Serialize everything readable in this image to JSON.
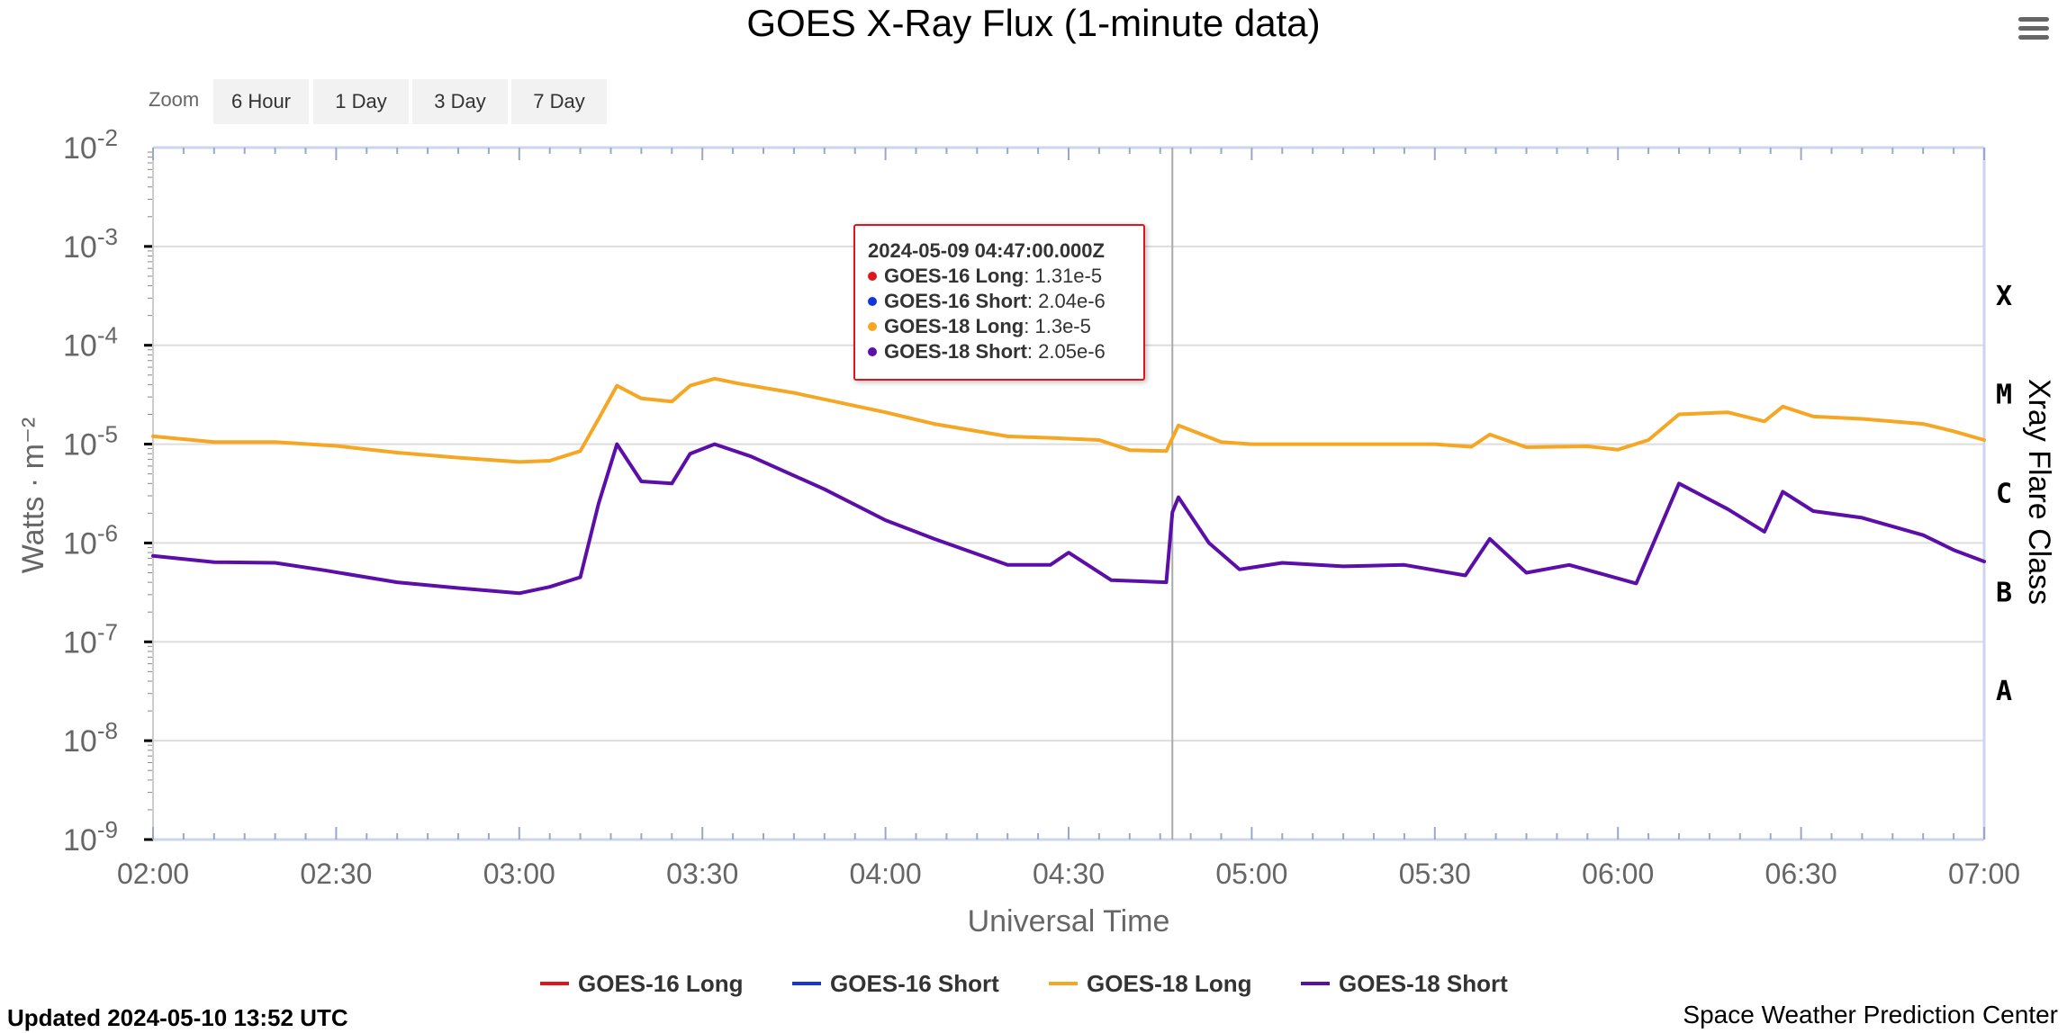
{
  "chart_data": {
    "type": "line",
    "title": "GOES X-Ray Flux (1-minute data)",
    "xlabel": "Universal Time",
    "ylabel": "Watts · m⁻²",
    "ylabel_right": "Xray Flare Class",
    "y_scale": "log",
    "ylim": [
      1e-09,
      0.01
    ],
    "xlim": [
      "2024-05-09T02:00Z",
      "2024-05-09T07:00Z"
    ],
    "x_tick_labels": [
      "02:00",
      "02:30",
      "03:00",
      "03:30",
      "04:00",
      "04:30",
      "05:00",
      "05:30",
      "06:00",
      "06:30",
      "07:00"
    ],
    "y_tick_exponents": [
      "-2",
      "-3",
      "-4",
      "-5",
      "-6",
      "-7",
      "-8",
      "-9"
    ],
    "flare_classes": [
      {
        "label": "X",
        "lower": 0.0001,
        "upper": 0.001
      },
      {
        "label": "M",
        "lower": 1e-05,
        "upper": 0.0001
      },
      {
        "label": "C",
        "lower": 1e-06,
        "upper": 1e-05
      },
      {
        "label": "B",
        "lower": 1e-07,
        "upper": 1e-06
      },
      {
        "label": "A",
        "lower": 1e-08,
        "upper": 1e-07
      }
    ],
    "grid": true,
    "legend_position": "bottom-center",
    "crosshair_time": "2024-05-09T04:47Z",
    "series": [
      {
        "name": "GOES-16 Long",
        "color": "#e0161a",
        "visible": false,
        "points": []
      },
      {
        "name": "GOES-16 Short",
        "color": "#1435d8",
        "visible": false,
        "points": []
      },
      {
        "name": "GOES-18 Long",
        "color": "#f5a623",
        "visible": true,
        "points": [
          [
            "2024-05-09T02:00Z",
            1.2e-05
          ],
          [
            "2024-05-09T02:10Z",
            1.05e-05
          ],
          [
            "2024-05-09T02:20Z",
            1.05e-05
          ],
          [
            "2024-05-09T02:30Z",
            9.6e-06
          ],
          [
            "2024-05-09T02:40Z",
            8.2e-06
          ],
          [
            "2024-05-09T02:50Z",
            7.3e-06
          ],
          [
            "2024-05-09T03:00Z",
            6.6e-06
          ],
          [
            "2024-05-09T03:05Z",
            6.8e-06
          ],
          [
            "2024-05-09T03:10Z",
            8.5e-06
          ],
          [
            "2024-05-09T03:13Z",
            1.8e-05
          ],
          [
            "2024-05-09T03:16Z",
            3.9e-05
          ],
          [
            "2024-05-09T03:20Z",
            2.9e-05
          ],
          [
            "2024-05-09T03:25Z",
            2.7e-05
          ],
          [
            "2024-05-09T03:28Z",
            3.9e-05
          ],
          [
            "2024-05-09T03:32Z",
            4.6e-05
          ],
          [
            "2024-05-09T03:36Z",
            4.1e-05
          ],
          [
            "2024-05-09T03:45Z",
            3.3e-05
          ],
          [
            "2024-05-09T04:00Z",
            2.1e-05
          ],
          [
            "2024-05-09T04:08Z",
            1.6e-05
          ],
          [
            "2024-05-09T04:20Z",
            1.2e-05
          ],
          [
            "2024-05-09T04:28Z",
            1.15e-05
          ],
          [
            "2024-05-09T04:35Z",
            1.1e-05
          ],
          [
            "2024-05-09T04:40Z",
            8.7e-06
          ],
          [
            "2024-05-09T04:46Z",
            8.5e-06
          ],
          [
            "2024-05-09T04:48Z",
            1.55e-05
          ],
          [
            "2024-05-09T04:55Z",
            1.05e-05
          ],
          [
            "2024-05-09T05:00Z",
            1e-05
          ],
          [
            "2024-05-09T05:20Z",
            1e-05
          ],
          [
            "2024-05-09T05:30Z",
            1e-05
          ],
          [
            "2024-05-09T05:36Z",
            9.4e-06
          ],
          [
            "2024-05-09T05:39Z",
            1.25e-05
          ],
          [
            "2024-05-09T05:45Z",
            9.3e-06
          ],
          [
            "2024-05-09T05:50Z",
            9.4e-06
          ],
          [
            "2024-05-09T05:55Z",
            9.5e-06
          ],
          [
            "2024-05-09T06:00Z",
            8.8e-06
          ],
          [
            "2024-05-09T06:05Z",
            1.1e-05
          ],
          [
            "2024-05-09T06:10Z",
            2e-05
          ],
          [
            "2024-05-09T06:18Z",
            2.1e-05
          ],
          [
            "2024-05-09T06:24Z",
            1.7e-05
          ],
          [
            "2024-05-09T06:27Z",
            2.4e-05
          ],
          [
            "2024-05-09T06:32Z",
            1.9e-05
          ],
          [
            "2024-05-09T06:40Z",
            1.8e-05
          ],
          [
            "2024-05-09T06:50Z",
            1.6e-05
          ],
          [
            "2024-05-09T06:55Z",
            1.35e-05
          ],
          [
            "2024-05-09T07:00Z",
            1.1e-05
          ]
        ]
      },
      {
        "name": "GOES-18 Short",
        "color": "#5b0ea8",
        "visible": true,
        "points": [
          [
            "2024-05-09T02:00Z",
            7.4e-07
          ],
          [
            "2024-05-09T02:10Z",
            6.4e-07
          ],
          [
            "2024-05-09T02:20Z",
            6.3e-07
          ],
          [
            "2024-05-09T02:28Z",
            5.3e-07
          ],
          [
            "2024-05-09T02:40Z",
            4e-07
          ],
          [
            "2024-05-09T02:50Z",
            3.5e-07
          ],
          [
            "2024-05-09T03:00Z",
            3.1e-07
          ],
          [
            "2024-05-09T03:05Z",
            3.6e-07
          ],
          [
            "2024-05-09T03:10Z",
            4.5e-07
          ],
          [
            "2024-05-09T03:13Z",
            2.5e-06
          ],
          [
            "2024-05-09T03:16Z",
            1e-05
          ],
          [
            "2024-05-09T03:20Z",
            4.2e-06
          ],
          [
            "2024-05-09T03:25Z",
            4e-06
          ],
          [
            "2024-05-09T03:28Z",
            8e-06
          ],
          [
            "2024-05-09T03:32Z",
            1e-05
          ],
          [
            "2024-05-09T03:38Z",
            7.5e-06
          ],
          [
            "2024-05-09T03:50Z",
            3.5e-06
          ],
          [
            "2024-05-09T04:00Z",
            1.7e-06
          ],
          [
            "2024-05-09T04:08Z",
            1.1e-06
          ],
          [
            "2024-05-09T04:20Z",
            6e-07
          ],
          [
            "2024-05-09T04:27Z",
            6e-07
          ],
          [
            "2024-05-09T04:30Z",
            8e-07
          ],
          [
            "2024-05-09T04:37Z",
            4.2e-07
          ],
          [
            "2024-05-09T04:46Z",
            4e-07
          ],
          [
            "2024-05-09T04:47Z",
            2.05e-06
          ],
          [
            "2024-05-09T04:48Z",
            2.9e-06
          ],
          [
            "2024-05-09T04:53Z",
            1e-06
          ],
          [
            "2024-05-09T04:58Z",
            5.4e-07
          ],
          [
            "2024-05-09T05:05Z",
            6.3e-07
          ],
          [
            "2024-05-09T05:15Z",
            5.8e-07
          ],
          [
            "2024-05-09T05:25Z",
            6e-07
          ],
          [
            "2024-05-09T05:35Z",
            4.7e-07
          ],
          [
            "2024-05-09T05:39Z",
            1.1e-06
          ],
          [
            "2024-05-09T05:45Z",
            5e-07
          ],
          [
            "2024-05-09T05:52Z",
            6e-07
          ],
          [
            "2024-05-09T06:03Z",
            3.9e-07
          ],
          [
            "2024-05-09T06:10Z",
            4e-06
          ],
          [
            "2024-05-09T06:18Z",
            2.2e-06
          ],
          [
            "2024-05-09T06:24Z",
            1.3e-06
          ],
          [
            "2024-05-09T06:27Z",
            3.3e-06
          ],
          [
            "2024-05-09T06:32Z",
            2.1e-06
          ],
          [
            "2024-05-09T06:40Z",
            1.8e-06
          ],
          [
            "2024-05-09T06:50Z",
            1.2e-06
          ],
          [
            "2024-05-09T06:55Z",
            8.5e-07
          ],
          [
            "2024-05-09T07:00Z",
            6.5e-07
          ]
        ]
      }
    ]
  },
  "zoom": {
    "label": "Zoom",
    "buttons": [
      "6 Hour",
      "1 Day",
      "3 Day",
      "7 Day"
    ]
  },
  "tooltip": {
    "title": "2024-05-09 04:47:00.000Z",
    "rows": [
      {
        "name": "GOES-16 Long",
        "value": "1.31e-5",
        "color": "#e0161a"
      },
      {
        "name": "GOES-16 Short",
        "value": "2.04e-6",
        "color": "#1435d8"
      },
      {
        "name": "GOES-18 Long",
        "value": "1.3e-5",
        "color": "#f5a623"
      },
      {
        "name": "GOES-18 Short",
        "value": "2.05e-6",
        "color": "#5b0ea8"
      }
    ]
  },
  "menu": {
    "icon": "hamburger-menu-icon"
  },
  "footer": {
    "updated": "Updated 2024-05-10 13:52 UTC",
    "source": "Space Weather Prediction Center"
  }
}
